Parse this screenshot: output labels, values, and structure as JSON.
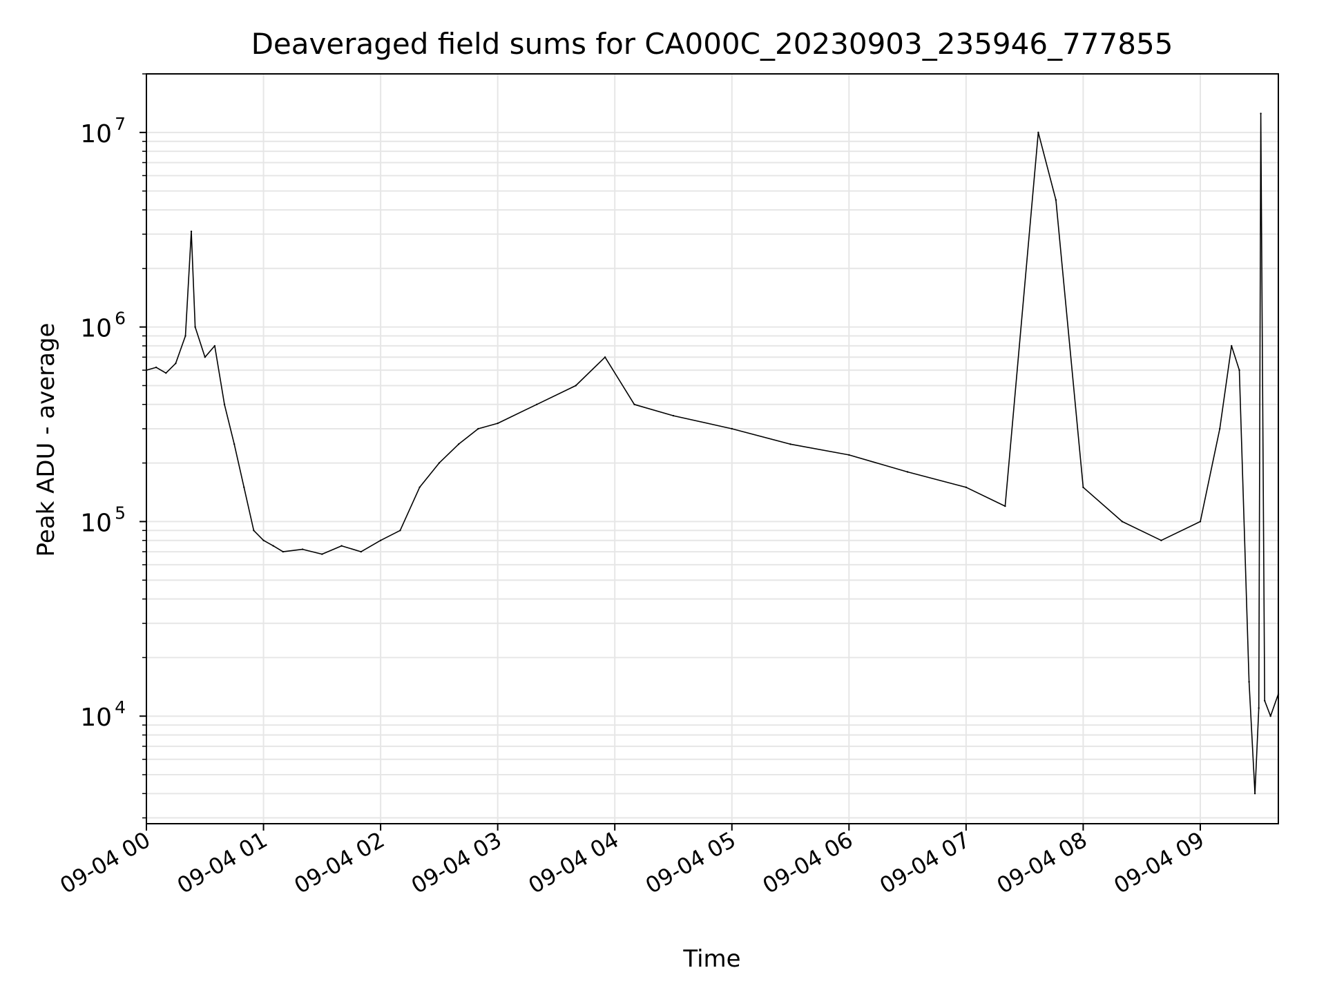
{
  "chart_data": {
    "type": "line",
    "title": "Deaveraged field sums for CA000C_20230903_235946_777855",
    "xlabel": "Time",
    "ylabel": "Peak ADU - average",
    "yscale": "log",
    "grid": true,
    "legend": "none",
    "line_color": "#000000",
    "grid_color": "#e6e6e6",
    "x_range": [
      "2023-09-04T00:00:00",
      "2023-09-04T09:40:00"
    ],
    "ylim": [
      2800,
      20000000
    ],
    "x_ticks": [
      {
        "t": "2023-09-04T00:00:00",
        "label": "09-04 00"
      },
      {
        "t": "2023-09-04T01:00:00",
        "label": "09-04 01"
      },
      {
        "t": "2023-09-04T02:00:00",
        "label": "09-04 02"
      },
      {
        "t": "2023-09-04T03:00:00",
        "label": "09-04 03"
      },
      {
        "t": "2023-09-04T04:00:00",
        "label": "09-04 04"
      },
      {
        "t": "2023-09-04T05:00:00",
        "label": "09-04 05"
      },
      {
        "t": "2023-09-04T06:00:00",
        "label": "09-04 06"
      },
      {
        "t": "2023-09-04T07:00:00",
        "label": "09-04 07"
      },
      {
        "t": "2023-09-04T08:00:00",
        "label": "09-04 08"
      },
      {
        "t": "2023-09-04T09:00:00",
        "label": "09-04 09"
      }
    ],
    "y_ticks": [
      {
        "value": 10000,
        "base": "10",
        "exp": "4"
      },
      {
        "value": 100000,
        "base": "10",
        "exp": "5"
      },
      {
        "value": 1000000,
        "base": "10",
        "exp": "6"
      },
      {
        "value": 10000000,
        "base": "10",
        "exp": "7"
      }
    ],
    "series": [
      {
        "values": [
          [
            "2023-09-04T00:00:00",
            600000
          ],
          [
            "2023-09-04T00:05:00",
            620000
          ],
          [
            "2023-09-04T00:10:00",
            580000
          ],
          [
            "2023-09-04T00:15:00",
            650000
          ],
          [
            "2023-09-04T00:20:00",
            900000
          ],
          [
            "2023-09-04T00:23:00",
            3100000
          ],
          [
            "2023-09-04T00:25:00",
            1000000
          ],
          [
            "2023-09-04T00:30:00",
            700000
          ],
          [
            "2023-09-04T00:35:00",
            800000
          ],
          [
            "2023-09-04T00:40:00",
            400000
          ],
          [
            "2023-09-04T00:45:00",
            250000
          ],
          [
            "2023-09-04T00:50:00",
            150000
          ],
          [
            "2023-09-04T00:55:00",
            90000
          ],
          [
            "2023-09-04T01:00:00",
            80000
          ],
          [
            "2023-09-04T01:05:00",
            75000
          ],
          [
            "2023-09-04T01:10:00",
            70000
          ],
          [
            "2023-09-04T01:20:00",
            72000
          ],
          [
            "2023-09-04T01:30:00",
            68000
          ],
          [
            "2023-09-04T01:40:00",
            75000
          ],
          [
            "2023-09-04T01:50:00",
            70000
          ],
          [
            "2023-09-04T02:00:00",
            80000
          ],
          [
            "2023-09-04T02:10:00",
            90000
          ],
          [
            "2023-09-04T02:20:00",
            150000
          ],
          [
            "2023-09-04T02:30:00",
            200000
          ],
          [
            "2023-09-04T02:40:00",
            250000
          ],
          [
            "2023-09-04T02:50:00",
            300000
          ],
          [
            "2023-09-04T03:00:00",
            320000
          ],
          [
            "2023-09-04T03:20:00",
            400000
          ],
          [
            "2023-09-04T03:40:00",
            500000
          ],
          [
            "2023-09-04T03:55:00",
            700000
          ],
          [
            "2023-09-04T04:10:00",
            400000
          ],
          [
            "2023-09-04T04:30:00",
            350000
          ],
          [
            "2023-09-04T05:00:00",
            300000
          ],
          [
            "2023-09-04T05:30:00",
            250000
          ],
          [
            "2023-09-04T06:00:00",
            220000
          ],
          [
            "2023-09-04T06:30:00",
            180000
          ],
          [
            "2023-09-04T07:00:00",
            150000
          ],
          [
            "2023-09-04T07:20:00",
            120000
          ],
          [
            "2023-09-04T07:37:00",
            10000000
          ],
          [
            "2023-09-04T07:46:00",
            4500000
          ],
          [
            "2023-09-04T08:00:00",
            150000
          ],
          [
            "2023-09-04T08:20:00",
            100000
          ],
          [
            "2023-09-04T08:40:00",
            80000
          ],
          [
            "2023-09-04T09:00:00",
            100000
          ],
          [
            "2023-09-04T09:10:00",
            300000
          ],
          [
            "2023-09-04T09:16:00",
            800000
          ],
          [
            "2023-09-04T09:20:00",
            600000
          ],
          [
            "2023-09-04T09:25:00",
            15000
          ],
          [
            "2023-09-04T09:28:00",
            4000
          ],
          [
            "2023-09-04T09:30:00",
            11000
          ],
          [
            "2023-09-04T09:31:00",
            12500000
          ],
          [
            "2023-09-04T09:33:00",
            12000
          ],
          [
            "2023-09-04T09:36:00",
            10000
          ],
          [
            "2023-09-04T09:40:00",
            13000
          ]
        ]
      }
    ]
  }
}
